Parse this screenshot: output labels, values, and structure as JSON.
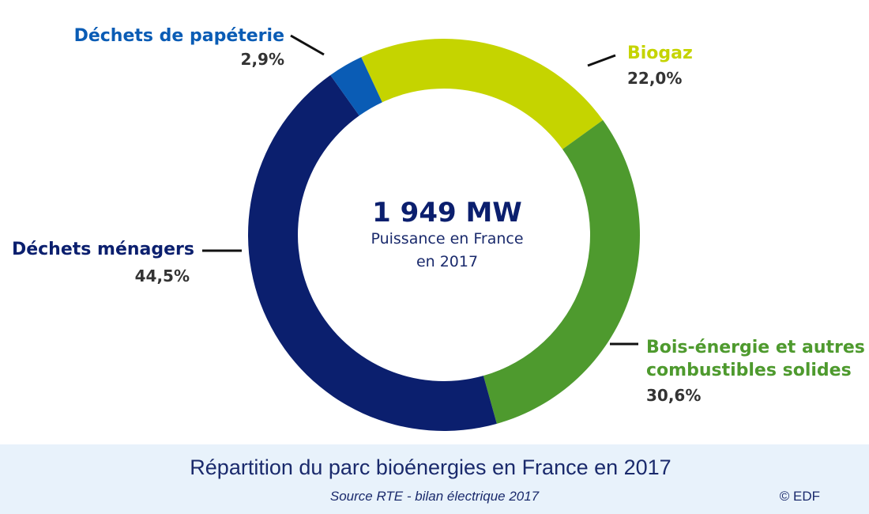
{
  "chart_data": {
    "type": "pie",
    "style": "donut",
    "center": {
      "total": "1 949 MW",
      "subtitle_line1": "Puissance en France",
      "subtitle_line2": "en 2017"
    },
    "slices": [
      {
        "label": "Biogaz",
        "value": 22.0,
        "value_label": "22,0%",
        "color": "#c5d400"
      },
      {
        "label": "Bois-énergie et autres combustibles solides",
        "label_lines": [
          "Bois-énergie et autres",
          "combustibles solides"
        ],
        "value": 30.6,
        "value_label": "30,6%",
        "color": "#4e9a2e"
      },
      {
        "label": "Déchets ménagers",
        "value": 44.5,
        "value_label": "44,5%",
        "color": "#0b1f6e"
      },
      {
        "label": "Déchets de papéterie",
        "value": 2.9,
        "value_label": "2,9%",
        "color": "#0a5cb5"
      }
    ],
    "title": "Répartition du parc bioénergies en France en 2017",
    "source": "Source RTE - bilan électrique 2017",
    "copyright": "© EDF"
  },
  "colors": {
    "title_text": "#1a2a6c",
    "footer_background": "#e8f2fb",
    "center_total": "#0b1f6e",
    "value_text": "#333333",
    "leader_line": "#111111"
  }
}
